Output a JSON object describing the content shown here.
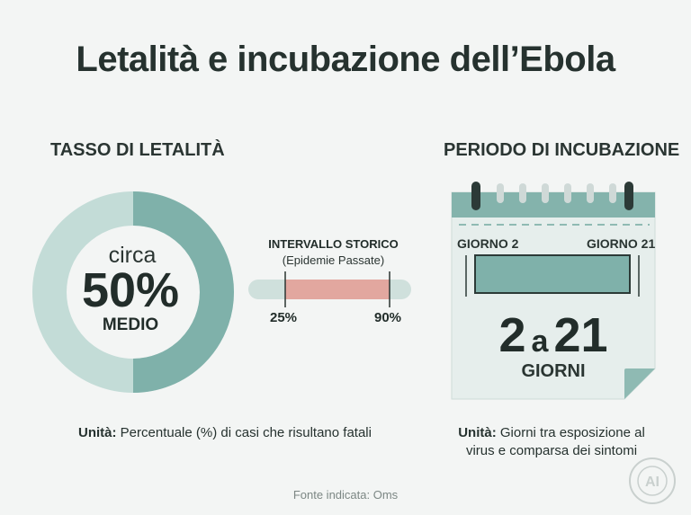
{
  "title": "Letalità e incubazione dell’Ebola",
  "left": {
    "heading": "TASSO DI LETALITÀ",
    "circa": "circa",
    "value": "50%",
    "value_fraction": 0.5,
    "medio": "MEDIO",
    "range_title": "INTERVALLO STORICO",
    "range_sub": "(Epidemie Passate)",
    "range_min": "25%",
    "range_max": "90%",
    "unit_label": "Unità:",
    "unit_text": " Percentuale (%) di casi che risultano fatali"
  },
  "right": {
    "heading": "PERIODO DI INCUBAZIONE",
    "day_start": "GIORNO 2",
    "day_end": "GIORNO 21",
    "range_from": "2",
    "range_a": "a",
    "range_to": "21",
    "giorni": "GIORNI",
    "unit_label": "Unità:",
    "unit_line1": " Giorni tra esposizione al",
    "unit_line2": "virus e comparsa dei sintomi"
  },
  "source": "Fonte indicata: Oms",
  "seal_text": "AI GENERATED",
  "colors": {
    "teal": "#7fb1aa",
    "teal_light": "#c3dcd7",
    "salmon": "#e2a79f",
    "text": "#253532",
    "background": "#f3f5f4"
  }
}
